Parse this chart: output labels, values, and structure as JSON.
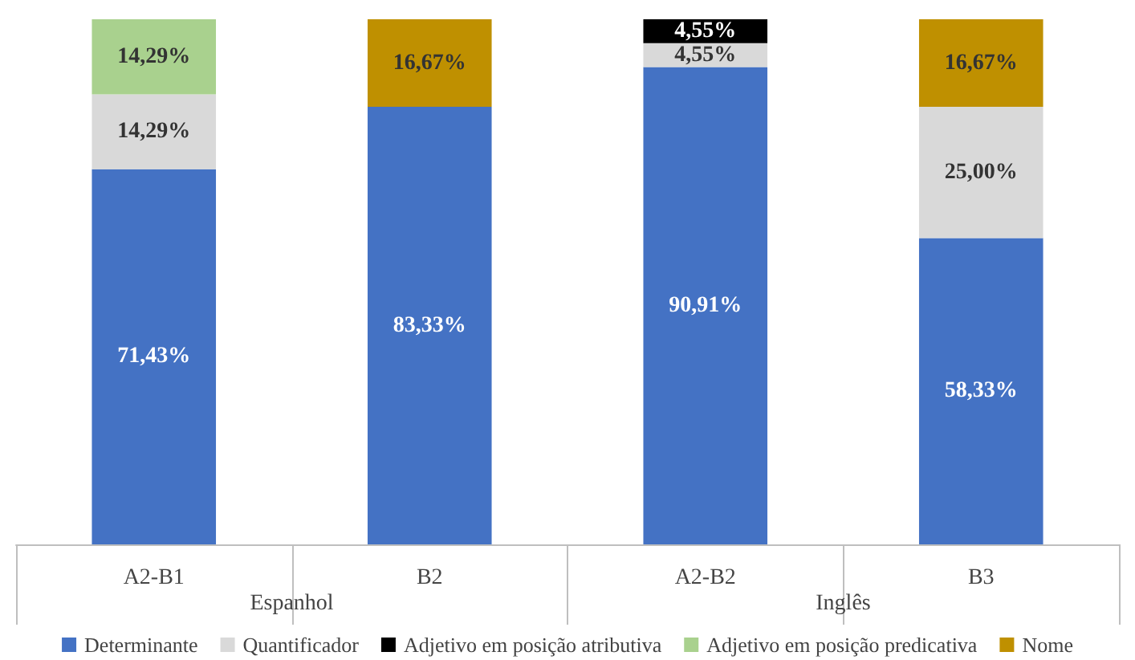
{
  "chart_data": {
    "type": "bar",
    "stacked": true,
    "categories": [
      "A2-B1",
      "B2",
      "A2-B2",
      "B3"
    ],
    "annotations": [
      "Espanhol",
      "Inglês"
    ],
    "ylim": [
      0,
      100
    ],
    "tick_labels": "x",
    "grid": false,
    "legend": "bottom",
    "series": [
      {
        "name": "Determinante",
        "color": "#4472c4",
        "values": [
          71.43,
          83.33,
          90.91,
          58.33
        ],
        "value_labels": [
          "71,43%",
          "83,33%",
          "90,91%",
          "58,33%"
        ]
      },
      {
        "name": "Quantificador",
        "color": "#d9d9d9",
        "values": [
          14.29,
          null,
          4.55,
          25.0
        ],
        "value_labels": [
          "14,29%",
          null,
          "4,55%",
          "25,00%"
        ]
      },
      {
        "name": "Adjetivo em posição atributiva",
        "color": "#000000",
        "values": [
          null,
          null,
          4.55,
          null
        ],
        "value_labels": [
          null,
          null,
          "4,55%",
          null
        ]
      },
      {
        "name": "Adjetivo em posição predicativa",
        "color": "#a9d18e",
        "values": [
          14.29,
          null,
          null,
          null
        ],
        "value_labels": [
          "14,29%",
          null,
          null,
          null
        ]
      },
      {
        "name": "Nome",
        "color": "#bf9000",
        "values": [
          null,
          16.67,
          null,
          16.67
        ],
        "value_labels": [
          null,
          "16,67%",
          null,
          "16,67%"
        ]
      }
    ]
  }
}
